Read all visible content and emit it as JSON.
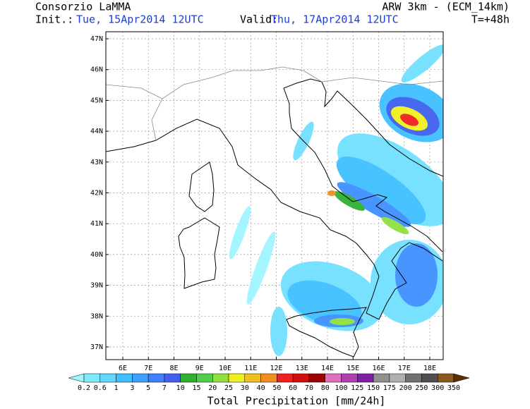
{
  "header": {
    "title": "Consorzio LaMMA",
    "model": "ARW 3km - (ECM_14km)",
    "init_label": "Init.:",
    "init": "Tue, 15Apr2014 12UTC",
    "valid_label": "Valid:",
    "valid": "Thu, 17Apr2014 12UTC",
    "lead": "T=+48h"
  },
  "map": {
    "lon_labels": [
      "6E",
      "7E",
      "8E",
      "9E",
      "10E",
      "11E",
      "12E",
      "13E",
      "14E",
      "15E",
      "16E",
      "17E",
      "18E"
    ],
    "lat_labels": [
      "47N",
      "46N",
      "45N",
      "44N",
      "43N",
      "42N",
      "41N",
      "40N",
      "39N",
      "38N",
      "37N"
    ]
  },
  "colorbar": {
    "title": "Total Precipitation [mm/24h]",
    "levels": [
      "0.2",
      "0.6",
      "1",
      "3",
      "5",
      "7",
      "10",
      "15",
      "20",
      "25",
      "30",
      "40",
      "50",
      "60",
      "70",
      "80",
      "100",
      "125",
      "150",
      "175",
      "200",
      "250",
      "300",
      "350"
    ],
    "colors": [
      "#a0f5ff",
      "#80eaff",
      "#60d8ff",
      "#40c0ff",
      "#40a0ff",
      "#4080ff",
      "#4060f0",
      "#30b030",
      "#50d050",
      "#90e040",
      "#f0f020",
      "#f0c020",
      "#f09020",
      "#f02020",
      "#d01010",
      "#a00000",
      "#e070c0",
      "#b040b0",
      "#8020a0",
      "#909090",
      "#b0b0b0",
      "#707070",
      "#505050",
      "#8a5a20",
      "#5a3000"
    ]
  }
}
